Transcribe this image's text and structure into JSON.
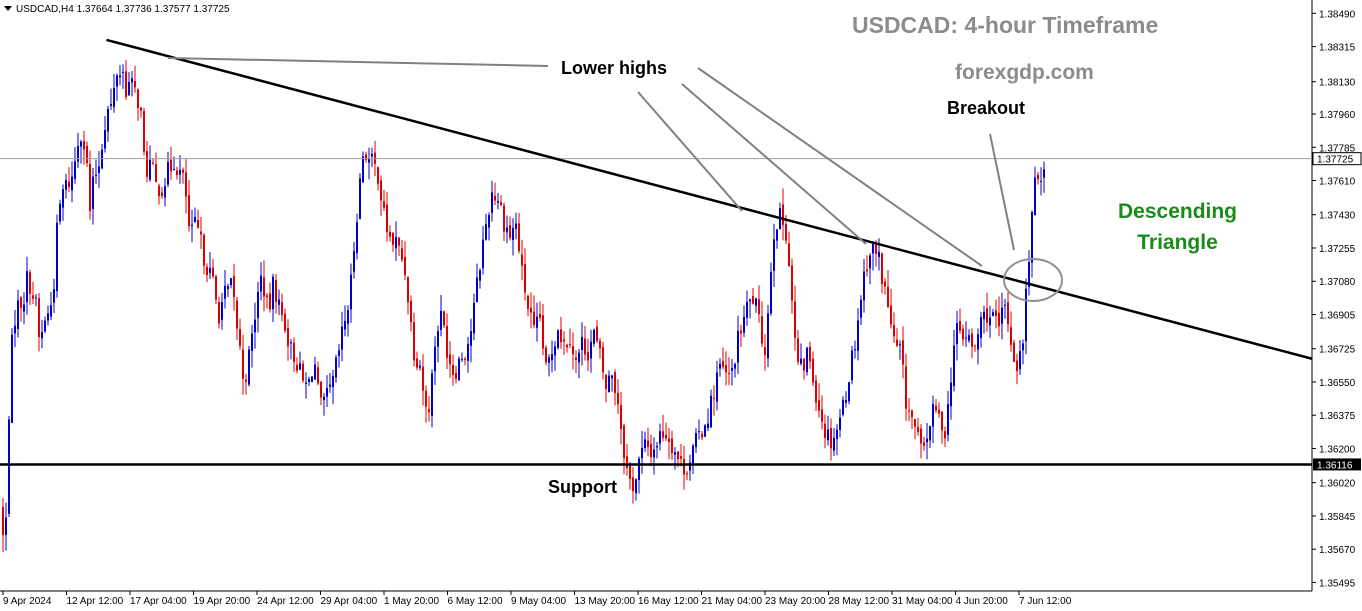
{
  "header": {
    "symbol": "USDCAD,H4",
    "ohlc": "1.37664 1.37736 1.37577 1.37725"
  },
  "annotations": {
    "title": "USDCAD: 4-hour Timeframe",
    "website": "forexgdp.com",
    "lower_highs": "Lower highs",
    "breakout": "Breakout",
    "support": "Support",
    "pattern": "Descending Triangle"
  },
  "colors": {
    "bull": "#0000cc",
    "bear": "#dd0000",
    "trendline": "#000000",
    "support": "#000000",
    "pointer": "#808080",
    "pattern_text": "#1a8a1a"
  },
  "chart_data": {
    "type": "candlestick",
    "symbol": "USDCAD",
    "timeframe": "H4",
    "y_ticks": [
      "1.38490",
      "1.38315",
      "1.38130",
      "1.37960",
      "1.37785",
      "1.37610",
      "1.37430",
      "1.37255",
      "1.37080",
      "1.36905",
      "1.36725",
      "1.36550",
      "1.36375",
      "1.36200",
      "1.36020",
      "1.35845",
      "1.35670",
      "1.35495"
    ],
    "x_ticks": [
      "9 Apr 2024",
      "12 Apr 12:00",
      "17 Apr 04:00",
      "19 Apr 20:00",
      "24 Apr 12:00",
      "29 Apr 04:00",
      "1 May 20:00",
      "6 May 12:00",
      "9 May 04:00",
      "13 May 20:00",
      "16 May 12:00",
      "21 May 04:00",
      "23 May 20:00",
      "28 May 12:00",
      "31 May 04:00",
      "4 Jun 20:00",
      "7 Jun 12:00"
    ],
    "ylim": [
      1.3545,
      1.3856
    ],
    "current_price": "1.37725",
    "support_level": "1.36116",
    "trendline": {
      "start": [
        "12 Apr 12:00",
        1.3835
      ],
      "end": [
        "7 Jun 12:00",
        1.3708
      ]
    },
    "close_path": [
      [
        0,
        1.359
      ],
      [
        5,
        1.3562
      ],
      [
        10,
        1.366
      ],
      [
        14,
        1.3688
      ],
      [
        18,
        1.3695
      ],
      [
        24,
        1.37
      ],
      [
        28,
        1.3712
      ],
      [
        32,
        1.3702
      ],
      [
        36,
        1.3695
      ],
      [
        40,
        1.3672
      ],
      [
        44,
        1.3688
      ],
      [
        48,
        1.369
      ],
      [
        53,
        1.37
      ],
      [
        58,
        1.3742
      ],
      [
        63,
        1.3755
      ],
      [
        68,
        1.376
      ],
      [
        72,
        1.3762
      ],
      [
        76,
        1.3775
      ],
      [
        80,
        1.379
      ],
      [
        86,
        1.3775
      ],
      [
        90,
        1.3745
      ],
      [
        94,
        1.3762
      ],
      [
        100,
        1.3772
      ],
      [
        104,
        1.379
      ],
      [
        108,
        1.3798
      ],
      [
        112,
        1.38
      ],
      [
        116,
        1.3815
      ],
      [
        118,
        1.3822
      ],
      [
        120,
        1.3818
      ],
      [
        122,
        1.382
      ],
      [
        126,
        1.381
      ],
      [
        130,
        1.3812
      ],
      [
        134,
        1.3808
      ],
      [
        140,
        1.3802
      ],
      [
        145,
        1.3765
      ],
      [
        150,
        1.377
      ],
      [
        156,
        1.3758
      ],
      [
        162,
        1.3758
      ],
      [
        168,
        1.3765
      ],
      [
        174,
        1.3772
      ],
      [
        180,
        1.3765
      ],
      [
        185,
        1.3758
      ],
      [
        190,
        1.373
      ],
      [
        196,
        1.3738
      ],
      [
        202,
        1.3725
      ],
      [
        208,
        1.3715
      ],
      [
        214,
        1.3705
      ],
      [
        218,
        1.369
      ],
      [
        224,
        1.37
      ],
      [
        232,
        1.3705
      ],
      [
        238,
        1.368
      ],
      [
        244,
        1.3655
      ],
      [
        250,
        1.367
      ],
      [
        256,
        1.3695
      ],
      [
        262,
        1.3712
      ],
      [
        268,
        1.369
      ],
      [
        274,
        1.3708
      ],
      [
        280,
        1.3692
      ],
      [
        286,
        1.3685
      ],
      [
        290,
        1.3672
      ],
      [
        296,
        1.3668
      ],
      [
        302,
        1.3655
      ],
      [
        308,
        1.3652
      ],
      [
        314,
        1.3668
      ],
      [
        320,
        1.364
      ],
      [
        326,
        1.3645
      ],
      [
        332,
        1.3652
      ],
      [
        338,
        1.3668
      ],
      [
        344,
        1.3685
      ],
      [
        350,
        1.37
      ],
      [
        356,
        1.374
      ],
      [
        360,
        1.376
      ],
      [
        364,
        1.378
      ],
      [
        368,
        1.3772
      ],
      [
        372,
        1.377
      ],
      [
        378,
        1.3765
      ],
      [
        384,
        1.3742
      ],
      [
        390,
        1.373
      ],
      [
        396,
        1.3728
      ],
      [
        402,
        1.372
      ],
      [
        406,
        1.3712
      ],
      [
        410,
        1.369
      ],
      [
        414,
        1.3672
      ],
      [
        420,
        1.3665
      ],
      [
        426,
        1.364
      ],
      [
        430,
        1.3645
      ],
      [
        436,
        1.3682
      ],
      [
        442,
        1.369
      ],
      [
        448,
        1.367
      ],
      [
        454,
        1.366
      ],
      [
        460,
        1.3668
      ],
      [
        466,
        1.3672
      ],
      [
        472,
        1.3685
      ],
      [
        478,
        1.371
      ],
      [
        482,
        1.3725
      ],
      [
        486,
        1.3738
      ],
      [
        492,
        1.3755
      ],
      [
        498,
        1.3752
      ],
      [
        504,
        1.374
      ],
      [
        510,
        1.3732
      ],
      [
        516,
        1.3738
      ],
      [
        522,
        1.3712
      ],
      [
        528,
        1.3695
      ],
      [
        534,
        1.368
      ],
      [
        540,
        1.3688
      ],
      [
        546,
        1.366
      ],
      [
        552,
        1.3672
      ],
      [
        558,
        1.3685
      ],
      [
        564,
        1.3675
      ],
      [
        570,
        1.368
      ],
      [
        576,
        1.3665
      ],
      [
        582,
        1.3675
      ],
      [
        588,
        1.3672
      ],
      [
        594,
        1.368
      ],
      [
        600,
        1.3668
      ],
      [
        606,
        1.3652
      ],
      [
        612,
        1.366
      ],
      [
        618,
        1.3645
      ],
      [
        624,
        1.362
      ],
      [
        628,
        1.3605
      ],
      [
        632,
        1.36
      ],
      [
        636,
        1.3605
      ],
      [
        640,
        1.3615
      ],
      [
        646,
        1.3622
      ],
      [
        652,
        1.3618
      ],
      [
        658,
        1.3625
      ],
      [
        664,
        1.363
      ],
      [
        670,
        1.3625
      ],
      [
        676,
        1.3618
      ],
      [
        682,
        1.361
      ],
      [
        688,
        1.3612
      ],
      [
        694,
        1.362
      ],
      [
        700,
        1.3628
      ],
      [
        706,
        1.3635
      ],
      [
        712,
        1.3645
      ],
      [
        718,
        1.3662
      ],
      [
        724,
        1.366
      ],
      [
        730,
        1.3655
      ],
      [
        736,
        1.3672
      ],
      [
        742,
        1.3685
      ],
      [
        748,
        1.3695
      ],
      [
        754,
        1.37
      ],
      [
        760,
        1.3682
      ],
      [
        766,
        1.3672
      ],
      [
        770,
        1.371
      ],
      [
        774,
        1.3735
      ],
      [
        778,
        1.3742
      ],
      [
        782,
        1.374
      ],
      [
        786,
        1.3735
      ],
      [
        790,
        1.3712
      ],
      [
        796,
        1.3668
      ],
      [
        802,
        1.366
      ],
      [
        808,
        1.3672
      ],
      [
        814,
        1.3655
      ],
      [
        820,
        1.364
      ],
      [
        826,
        1.3628
      ],
      [
        832,
        1.3625
      ],
      [
        838,
        1.3632
      ],
      [
        844,
        1.3645
      ],
      [
        850,
        1.3662
      ],
      [
        856,
        1.368
      ],
      [
        862,
        1.3705
      ],
      [
        868,
        1.3722
      ],
      [
        874,
        1.3725
      ],
      [
        880,
        1.3718
      ],
      [
        884,
        1.3705
      ],
      [
        888,
        1.3695
      ],
      [
        892,
        1.3682
      ],
      [
        896,
        1.367
      ],
      [
        900,
        1.3672
      ],
      [
        906,
        1.3645
      ],
      [
        912,
        1.3635
      ],
      [
        918,
        1.3625
      ],
      [
        922,
        1.3615
      ],
      [
        928,
        1.363
      ],
      [
        934,
        1.364
      ],
      [
        940,
        1.3635
      ],
      [
        946,
        1.363
      ],
      [
        952,
        1.3665
      ],
      [
        956,
        1.3682
      ],
      [
        962,
        1.368
      ],
      [
        968,
        1.3678
      ],
      [
        974,
        1.367
      ],
      [
        980,
        1.3685
      ],
      [
        986,
        1.3692
      ],
      [
        990,
        1.369
      ],
      [
        994,
        1.3688
      ],
      [
        998,
        1.368
      ],
      [
        1002,
        1.369
      ],
      [
        1006,
        1.3695
      ],
      [
        1010,
        1.368
      ],
      [
        1014,
        1.3668
      ],
      [
        1018,
        1.3665
      ],
      [
        1022,
        1.367
      ],
      [
        1026,
        1.37
      ],
      [
        1030,
        1.373
      ],
      [
        1034,
        1.3755
      ],
      [
        1038,
        1.3762
      ],
      [
        1042,
        1.3768
      ],
      [
        1046,
        1.3772
      ]
    ]
  }
}
